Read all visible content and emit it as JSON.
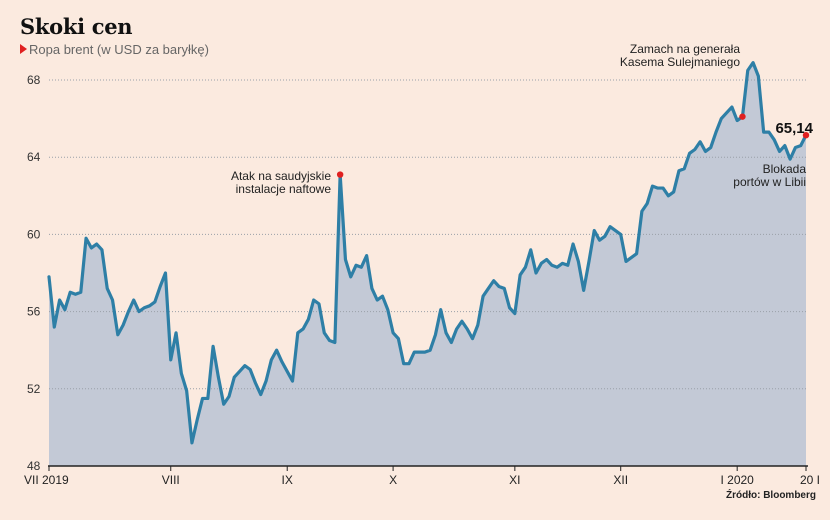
{
  "chart_data": {
    "type": "area",
    "title": "Skoki cen",
    "subtitle": "Ropa brent (w USD za baryłkę)",
    "source": "Źródło: Bloomberg",
    "ylim": [
      48,
      70
    ],
    "y_ticks": [
      48,
      52,
      56,
      60,
      64,
      68
    ],
    "x_ticks": [
      {
        "label": "VII 2019",
        "index": 0
      },
      {
        "label": "VIII",
        "index": 23
      },
      {
        "label": "IX",
        "index": 45
      },
      {
        "label": "X",
        "index": 65
      },
      {
        "label": "XI",
        "index": 88
      },
      {
        "label": "XII",
        "index": 108
      },
      {
        "label": "I 2020",
        "index": 130
      },
      {
        "label": "20 I",
        "index": 143
      }
    ],
    "series": [
      {
        "values": [
          57.8,
          55.2,
          56.6,
          56.1,
          57.0,
          56.9,
          57.0,
          59.8,
          59.3,
          59.5,
          59.2,
          57.2,
          56.6,
          54.8,
          55.3,
          56.0,
          56.6,
          56.0,
          56.2,
          56.3,
          56.5,
          57.3,
          58.0,
          53.5,
          54.9,
          52.8,
          51.9,
          49.2,
          50.4,
          51.5,
          51.5,
          54.2,
          52.6,
          51.2,
          51.6,
          52.6,
          52.9,
          53.2,
          53.0,
          52.3,
          51.7,
          52.4,
          53.5,
          54.0,
          53.4,
          52.9,
          52.4,
          54.9,
          55.1,
          55.6,
          56.6,
          56.4,
          54.9,
          54.5,
          54.4,
          63.1,
          58.7,
          57.8,
          58.4,
          58.3,
          58.9,
          57.2,
          56.6,
          56.8,
          56.1,
          54.9,
          54.6,
          53.3,
          53.3,
          53.9,
          53.9,
          53.9,
          54.0,
          54.8,
          56.1,
          54.9,
          54.4,
          55.1,
          55.5,
          55.1,
          54.6,
          55.3,
          56.8,
          57.2,
          57.6,
          57.3,
          57.2,
          56.2,
          55.9,
          57.9,
          58.3,
          59.2,
          58.0,
          58.5,
          58.7,
          58.4,
          58.3,
          58.5,
          58.4,
          59.5,
          58.6,
          57.1,
          58.6,
          60.2,
          59.7,
          59.9,
          60.4,
          60.2,
          60.0,
          58.6,
          58.8,
          59.0,
          61.2,
          61.6,
          62.5,
          62.4,
          62.4,
          62.0,
          62.2,
          63.3,
          63.4,
          64.2,
          64.4,
          64.8,
          64.3,
          64.5,
          65.3,
          66.0,
          66.3,
          66.6,
          65.9,
          66.1,
          68.5,
          68.9,
          68.2,
          65.3,
          65.3,
          64.9,
          64.3,
          64.6,
          63.9,
          64.5,
          64.6,
          65.14
        ]
      }
    ],
    "end_value_label": "65,14",
    "annotations": [
      {
        "text": [
          "Atak na saudyjskie",
          "instalacje naftowe"
        ],
        "index": 55
      },
      {
        "text": [
          "Zamach na generała",
          "Kasema Sulejmaniego"
        ],
        "index": 131
      },
      {
        "text": [
          "Blokada",
          "portów w Libii"
        ],
        "index": 143
      }
    ],
    "colors": {
      "line": "#2e7fa6",
      "fill": "#c3c9d6",
      "marker": "#e02020",
      "grid": "#9aa0a8",
      "background": "#fbeadf"
    },
    "grid": true
  }
}
